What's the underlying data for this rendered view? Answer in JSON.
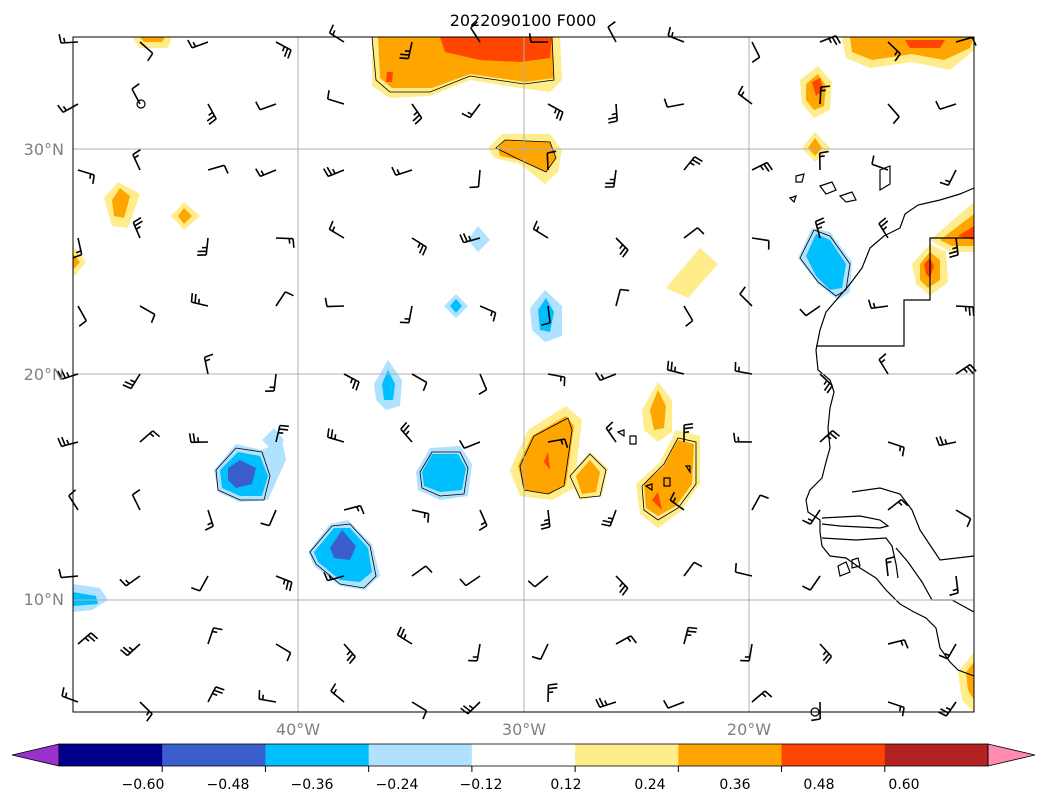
{
  "title": "2022090100 F000",
  "axes": {
    "lat_labels": [
      {
        "deg": 30,
        "text": "30°N"
      },
      {
        "deg": 20,
        "text": "20°N"
      },
      {
        "deg": 10,
        "text": "10°N"
      }
    ],
    "lon_labels": [
      {
        "deg": -40,
        "text": "40°W"
      },
      {
        "deg": -30,
        "text": "30°W"
      },
      {
        "deg": -20,
        "text": "20°W"
      }
    ],
    "extent": {
      "lon_min": -50,
      "lon_max": -10,
      "lat_min": 5,
      "lat_max": 35
    }
  },
  "colorbar": {
    "colors": [
      "#9932cc",
      "#00008b",
      "#3a5fcd",
      "#00bfff",
      "#b0e2ff",
      "#ffffff",
      "#ffec8b",
      "#ffa500",
      "#ff4500",
      "#b22222",
      "#ff8caf"
    ],
    "labels": [
      "−0.60",
      "−0.48",
      "−0.36",
      "−0.24",
      "−0.12",
      "0.12",
      "0.24",
      "0.36",
      "0.48",
      "0.60"
    ]
  },
  "fill_colors": {
    "light_yellow": "#ffec8b",
    "orange": "#ffa500",
    "red_orange": "#ff4500",
    "light_blue": "#b0e2ff",
    "deep_sky_blue": "#00bfff",
    "royal_blue": "#3a5fcd"
  },
  "wind_barbs": "grid of black wind barbs at ~3° spacing",
  "coastline_color": "#000000",
  "gridline_color": "#b0b0b0"
}
